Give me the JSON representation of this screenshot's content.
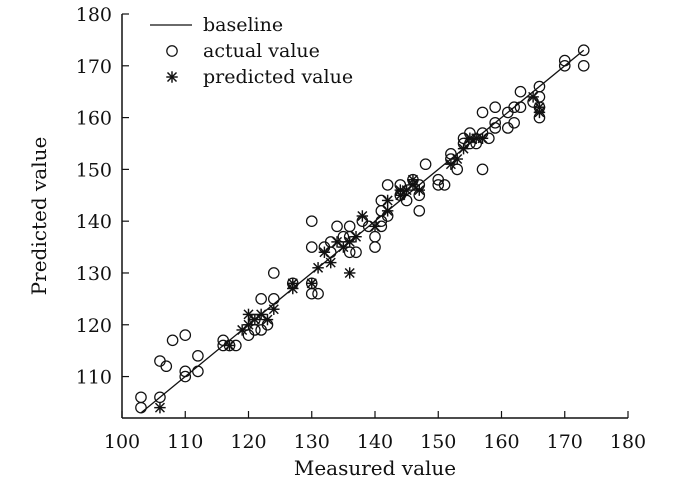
{
  "chart_data": {
    "type": "scatter",
    "title": "",
    "xlabel": "Measured value",
    "ylabel": "Predicted value",
    "xlim": [
      100,
      180
    ],
    "ylim": [
      102,
      180
    ],
    "x_ticks": [
      100,
      110,
      120,
      130,
      140,
      150,
      160,
      170,
      180
    ],
    "y_ticks": [
      110,
      120,
      130,
      140,
      150,
      160,
      170,
      180
    ],
    "legend": {
      "position": "top-left",
      "entries": [
        "baseline",
        "actual value",
        "predicted value"
      ]
    },
    "grid": false,
    "colors": {
      "axis": "#111111",
      "baseline": "#111111",
      "marker": "#111111"
    },
    "series": [
      {
        "name": "baseline",
        "type": "line",
        "x": [
          103,
          173
        ],
        "y": [
          103,
          173
        ]
      },
      {
        "name": "actual value",
        "type": "scatter",
        "marker": "open-circle",
        "points": [
          [
            103,
            104
          ],
          [
            103,
            106
          ],
          [
            106,
            106
          ],
          [
            106,
            113
          ],
          [
            107,
            112
          ],
          [
            108,
            117
          ],
          [
            110,
            111
          ],
          [
            110,
            110
          ],
          [
            110,
            118
          ],
          [
            112,
            111
          ],
          [
            112,
            114
          ],
          [
            116,
            117
          ],
          [
            116,
            116
          ],
          [
            117,
            116
          ],
          [
            118,
            116
          ],
          [
            120,
            118
          ],
          [
            121,
            119
          ],
          [
            121,
            121
          ],
          [
            122,
            119
          ],
          [
            122,
            125
          ],
          [
            123,
            120
          ],
          [
            124,
            130
          ],
          [
            124,
            125
          ],
          [
            127,
            128
          ],
          [
            130,
            140
          ],
          [
            130,
            135
          ],
          [
            130,
            128
          ],
          [
            130,
            126
          ],
          [
            131,
            126
          ],
          [
            132,
            135
          ],
          [
            133,
            134
          ],
          [
            133,
            136
          ],
          [
            134,
            139
          ],
          [
            135,
            137
          ],
          [
            136,
            139
          ],
          [
            136,
            137
          ],
          [
            136,
            134
          ],
          [
            137,
            134
          ],
          [
            138,
            140
          ],
          [
            139,
            139
          ],
          [
            140,
            137
          ],
          [
            140,
            135
          ],
          [
            141,
            144
          ],
          [
            141,
            142
          ],
          [
            141,
            140
          ],
          [
            141,
            139
          ],
          [
            142,
            141
          ],
          [
            142,
            147
          ],
          [
            144,
            147
          ],
          [
            144,
            145
          ],
          [
            145,
            144
          ],
          [
            146,
            148
          ],
          [
            147,
            147
          ],
          [
            147,
            145
          ],
          [
            147,
            142
          ],
          [
            148,
            151
          ],
          [
            150,
            147
          ],
          [
            150,
            148
          ],
          [
            151,
            147
          ],
          [
            152,
            152
          ],
          [
            152,
            153
          ],
          [
            153,
            150
          ],
          [
            154,
            155
          ],
          [
            154,
            156
          ],
          [
            155,
            157
          ],
          [
            155,
            155
          ],
          [
            156,
            155
          ],
          [
            157,
            157
          ],
          [
            157,
            161
          ],
          [
            157,
            150
          ],
          [
            158,
            156
          ],
          [
            159,
            158
          ],
          [
            159,
            159
          ],
          [
            159,
            162
          ],
          [
            161,
            158
          ],
          [
            161,
            161
          ],
          [
            162,
            159
          ],
          [
            162,
            162
          ],
          [
            163,
            162
          ],
          [
            163,
            165
          ],
          [
            165,
            163
          ],
          [
            166,
            166
          ],
          [
            166,
            164
          ],
          [
            166,
            162
          ],
          [
            166,
            160
          ],
          [
            170,
            170
          ],
          [
            170,
            171
          ],
          [
            173,
            173
          ],
          [
            173,
            170
          ]
        ]
      },
      {
        "name": "predicted value",
        "type": "scatter",
        "marker": "asterisk",
        "points": [
          [
            106,
            104
          ],
          [
            117,
            116
          ],
          [
            119,
            119
          ],
          [
            120,
            122
          ],
          [
            120,
            120
          ],
          [
            121,
            121
          ],
          [
            122,
            122
          ],
          [
            123,
            121
          ],
          [
            124,
            123
          ],
          [
            127,
            127
          ],
          [
            127,
            128
          ],
          [
            130,
            128
          ],
          [
            131,
            131
          ],
          [
            132,
            134
          ],
          [
            133,
            132
          ],
          [
            134,
            136
          ],
          [
            135,
            135
          ],
          [
            136,
            130
          ],
          [
            136,
            136
          ],
          [
            137,
            137
          ],
          [
            138,
            141
          ],
          [
            140,
            139
          ],
          [
            142,
            142
          ],
          [
            142,
            144
          ],
          [
            144,
            145
          ],
          [
            144,
            146
          ],
          [
            145,
            146
          ],
          [
            146,
            147
          ],
          [
            146,
            148
          ],
          [
            147,
            146
          ],
          [
            152,
            151
          ],
          [
            153,
            152
          ],
          [
            154,
            154
          ],
          [
            155,
            156
          ],
          [
            156,
            156
          ],
          [
            157,
            156
          ],
          [
            165,
            164
          ],
          [
            166,
            162
          ],
          [
            166,
            161
          ]
        ]
      }
    ]
  }
}
